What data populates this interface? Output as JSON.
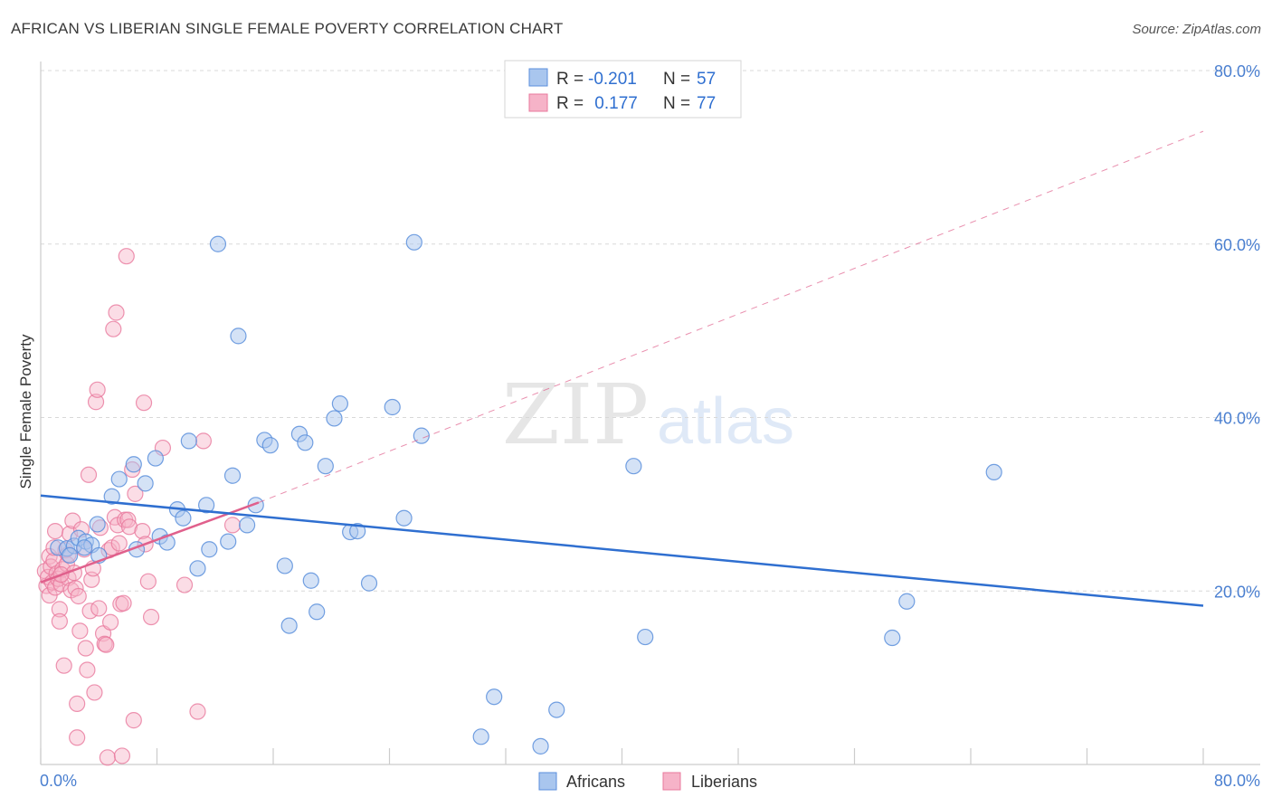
{
  "title": "AFRICAN VS LIBERIAN SINGLE FEMALE POVERTY CORRELATION CHART",
  "source": "Source: ZipAtlas.com",
  "watermark": {
    "zip": "ZIP",
    "atlas": "atlas"
  },
  "legend": {
    "rows": [
      {
        "r_label": "R =",
        "r_value": "-0.201",
        "n_label": "N =",
        "n_value": "57"
      },
      {
        "r_label": "R =",
        "r_value": " 0.177",
        "n_label": "N =",
        "n_value": "77"
      }
    ]
  },
  "bottom_legend": {
    "africans": "Africans",
    "liberians": "Liberians"
  },
  "colors": {
    "africans_fill": "#a9c6ee",
    "africans_stroke": "#5b8fdc",
    "africans_line": "#2f6fd0",
    "liberians_fill": "#f6b3c8",
    "liberians_stroke": "#e8789c",
    "liberians_line": "#e0608c",
    "axis_text": "#4a7fd0",
    "grid": "#d8d8d8"
  },
  "chart_data": {
    "type": "scatter",
    "title": "AFRICAN VS LIBERIAN SINGLE FEMALE POVERTY CORRELATION CHART",
    "xlabel": "",
    "ylabel": "Single Female Poverty",
    "xlim": [
      0,
      80
    ],
    "ylim": [
      0,
      80
    ],
    "x_tick_labels": [
      "0.0%",
      "80.0%"
    ],
    "y_tick_labels": [
      "20.0%",
      "40.0%",
      "60.0%",
      "80.0%"
    ],
    "y_ticks": [
      20,
      40,
      60,
      80
    ],
    "grid": true,
    "legend_position": "top-center",
    "series": [
      {
        "name": "Africans",
        "r": -0.201,
        "n": 57,
        "trend": {
          "x": [
            0,
            80
          ],
          "y": [
            31.0,
            18.3
          ]
        },
        "points": [
          [
            1.2,
            25.0
          ],
          [
            1.8,
            24.9
          ],
          [
            2.3,
            25.2
          ],
          [
            2.6,
            26.1
          ],
          [
            3.1,
            25.7
          ],
          [
            3.5,
            25.3
          ],
          [
            3.9,
            27.7
          ],
          [
            4.0,
            24.1
          ],
          [
            4.9,
            30.9
          ],
          [
            5.4,
            32.9
          ],
          [
            6.4,
            34.6
          ],
          [
            6.6,
            24.8
          ],
          [
            7.2,
            32.4
          ],
          [
            7.9,
            35.3
          ],
          [
            8.2,
            26.3
          ],
          [
            8.7,
            25.6
          ],
          [
            9.4,
            29.4
          ],
          [
            9.8,
            28.4
          ],
          [
            10.2,
            37.3
          ],
          [
            10.8,
            22.6
          ],
          [
            11.4,
            29.9
          ],
          [
            11.6,
            24.8
          ],
          [
            12.2,
            60.0
          ],
          [
            12.9,
            25.7
          ],
          [
            13.2,
            33.3
          ],
          [
            13.6,
            49.4
          ],
          [
            14.2,
            27.6
          ],
          [
            14.8,
            29.9
          ],
          [
            15.4,
            37.4
          ],
          [
            15.8,
            36.8
          ],
          [
            16.8,
            22.9
          ],
          [
            17.1,
            16.0
          ],
          [
            17.8,
            38.1
          ],
          [
            18.2,
            37.1
          ],
          [
            18.6,
            21.2
          ],
          [
            19.0,
            17.6
          ],
          [
            19.6,
            34.4
          ],
          [
            20.2,
            39.9
          ],
          [
            20.6,
            41.6
          ],
          [
            21.3,
            26.8
          ],
          [
            21.8,
            26.9
          ],
          [
            22.6,
            20.9
          ],
          [
            24.2,
            41.2
          ],
          [
            25.0,
            28.4
          ],
          [
            25.7,
            60.2
          ],
          [
            26.2,
            37.9
          ],
          [
            30.3,
            3.2
          ],
          [
            31.2,
            7.8
          ],
          [
            34.4,
            2.1
          ],
          [
            35.5,
            6.3
          ],
          [
            40.8,
            34.4
          ],
          [
            41.6,
            14.7
          ],
          [
            58.6,
            14.6
          ],
          [
            59.6,
            18.8
          ],
          [
            65.6,
            33.7
          ],
          [
            3.0,
            25.0
          ],
          [
            2.0,
            24.1
          ]
        ]
      },
      {
        "name": "Liberians",
        "r": 0.177,
        "n": 77,
        "trend": {
          "x": [
            0,
            15
          ],
          "y": [
            21.0,
            30.2
          ]
        },
        "trend_dashed": {
          "x": [
            15,
            80
          ],
          "y": [
            30.2,
            73.0
          ]
        },
        "points": [
          [
            0.3,
            22.3
          ],
          [
            0.4,
            20.6
          ],
          [
            0.5,
            21.6
          ],
          [
            0.6,
            24.0
          ],
          [
            0.6,
            19.5
          ],
          [
            0.7,
            22.8
          ],
          [
            0.8,
            21.0
          ],
          [
            0.9,
            23.5
          ],
          [
            1.0,
            20.4
          ],
          [
            1.0,
            26.9
          ],
          [
            1.1,
            22.0
          ],
          [
            1.2,
            21.4
          ],
          [
            1.3,
            17.9
          ],
          [
            1.3,
            16.5
          ],
          [
            1.4,
            20.8
          ],
          [
            1.5,
            22.5
          ],
          [
            1.6,
            11.4
          ],
          [
            1.7,
            24.7
          ],
          [
            1.8,
            23.1
          ],
          [
            1.9,
            21.5
          ],
          [
            2.0,
            26.6
          ],
          [
            2.1,
            20.1
          ],
          [
            2.2,
            28.1
          ],
          [
            2.3,
            22.1
          ],
          [
            2.4,
            20.3
          ],
          [
            2.5,
            7.0
          ],
          [
            2.5,
            3.1
          ],
          [
            2.6,
            19.4
          ],
          [
            2.7,
            15.4
          ],
          [
            2.8,
            27.1
          ],
          [
            3.0,
            24.8
          ],
          [
            3.1,
            13.4
          ],
          [
            3.2,
            10.9
          ],
          [
            3.3,
            33.4
          ],
          [
            3.4,
            17.7
          ],
          [
            3.5,
            21.3
          ],
          [
            3.6,
            22.6
          ],
          [
            3.7,
            8.3
          ],
          [
            3.8,
            41.8
          ],
          [
            3.9,
            43.2
          ],
          [
            4.0,
            18.0
          ],
          [
            4.1,
            27.3
          ],
          [
            4.3,
            15.1
          ],
          [
            4.4,
            13.9
          ],
          [
            4.5,
            13.8
          ],
          [
            4.6,
            0.8
          ],
          [
            4.7,
            24.7
          ],
          [
            4.8,
            16.4
          ],
          [
            4.9,
            25.0
          ],
          [
            5.0,
            50.2
          ],
          [
            5.1,
            28.5
          ],
          [
            5.2,
            52.1
          ],
          [
            5.3,
            27.6
          ],
          [
            5.4,
            25.5
          ],
          [
            5.5,
            18.5
          ],
          [
            5.6,
            1.0
          ],
          [
            5.7,
            18.6
          ],
          [
            5.8,
            28.2
          ],
          [
            5.9,
            58.6
          ],
          [
            6.0,
            28.2
          ],
          [
            6.1,
            27.4
          ],
          [
            6.3,
            34.0
          ],
          [
            6.4,
            5.1
          ],
          [
            6.5,
            31.2
          ],
          [
            7.0,
            26.9
          ],
          [
            7.1,
            41.7
          ],
          [
            7.2,
            25.4
          ],
          [
            7.4,
            21.1
          ],
          [
            7.6,
            17.0
          ],
          [
            8.4,
            36.5
          ],
          [
            9.9,
            20.7
          ],
          [
            10.8,
            6.1
          ],
          [
            11.2,
            37.3
          ],
          [
            13.2,
            27.6
          ],
          [
            1.4,
            21.9
          ],
          [
            0.9,
            25.0
          ],
          [
            1.9,
            24.2
          ]
        ]
      }
    ]
  }
}
